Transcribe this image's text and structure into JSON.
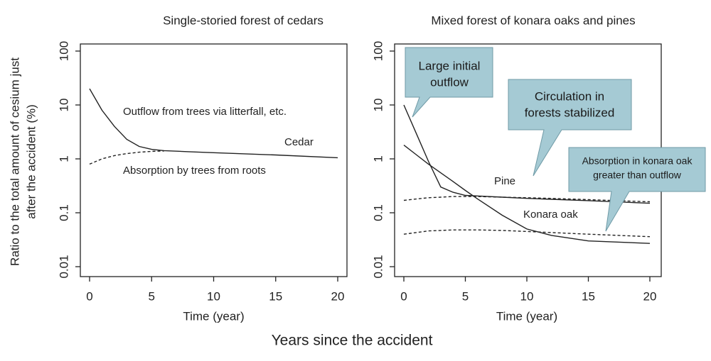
{
  "figure": {
    "xlabel": "Years since the accident",
    "ylabel": [
      "Ratio to the total amount of cesium just",
      "after the accident (%)"
    ]
  },
  "chart_data": [
    {
      "type": "line",
      "title": "Single-storied forest of cedars",
      "xlabel": "Time (year)",
      "log_y": true,
      "color": "#222222",
      "x": [
        0,
        1,
        2,
        3,
        4,
        5,
        6,
        8,
        10,
        15,
        20
      ],
      "series": [
        {
          "style": "solid",
          "values": [
            20,
            8,
            4,
            2.3,
            1.7,
            1.5,
            1.42,
            1.36,
            1.3,
            1.18,
            1.05
          ]
        },
        {
          "style": "dashed",
          "values": [
            0.8,
            1.0,
            1.15,
            1.25,
            1.33,
            1.38,
            1.4,
            null,
            null,
            null,
            null
          ]
        }
      ],
      "xlim": [
        0,
        20
      ],
      "xticks": [
        0,
        5,
        10,
        15,
        20
      ],
      "ylim": [
        0.01,
        100
      ],
      "yticks": [
        0.01,
        0.1,
        1,
        10,
        100
      ],
      "annotations": [
        "Outflow from trees via litterfall, etc.",
        "Absorption by trees from roots",
        "Cedar"
      ]
    },
    {
      "type": "line",
      "title": "Mixed forest of konara oaks and pines",
      "xlabel": "Time (year)",
      "log_y": true,
      "color": "#222222",
      "x": [
        0,
        1,
        2,
        3,
        4,
        5,
        6,
        8,
        10,
        12,
        15,
        20
      ],
      "series": [
        {
          "style": "solid",
          "values": [
            10,
            3,
            0.9,
            0.3,
            0.24,
            0.21,
            0.205,
            0.195,
            0.185,
            0.178,
            0.168,
            0.15
          ]
        },
        {
          "style": "dashed",
          "values": [
            0.17,
            0.18,
            0.19,
            0.195,
            0.2,
            0.2,
            0.2,
            0.195,
            0.19,
            0.185,
            0.175,
            0.16
          ]
        },
        {
          "style": "solid",
          "values": [
            1.8,
            1.2,
            0.8,
            0.55,
            0.38,
            0.26,
            0.18,
            0.09,
            0.05,
            0.038,
            0.03,
            0.027
          ]
        },
        {
          "style": "dashed",
          "values": [
            0.04,
            0.043,
            0.046,
            0.047,
            0.048,
            0.048,
            0.048,
            0.047,
            0.045,
            0.043,
            0.04,
            0.036
          ]
        }
      ],
      "xlim": [
        0,
        20
      ],
      "xticks": [
        0,
        5,
        10,
        15,
        20
      ],
      "ylim": [
        0.01,
        100
      ],
      "yticks": [
        0.01,
        0.1,
        1,
        10,
        100
      ],
      "annotations": [
        "Pine",
        "Konara oak"
      ],
      "callouts": [
        [
          "Large initial",
          "outflow"
        ],
        [
          "Circulation in",
          "forests stabilized"
        ],
        [
          "Absorption in konara oak",
          "greater than outflow"
        ]
      ]
    }
  ]
}
